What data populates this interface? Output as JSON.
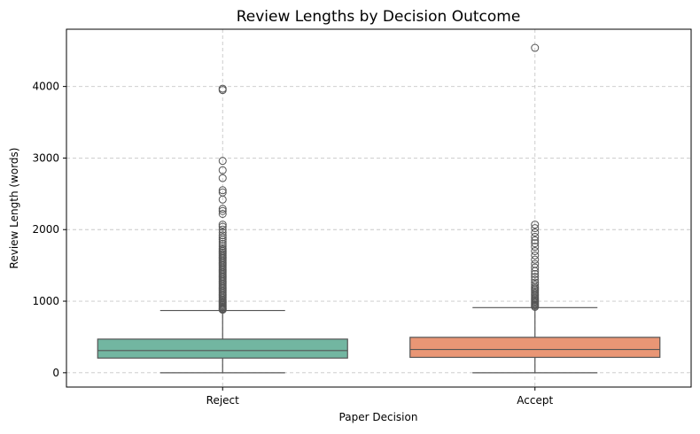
{
  "chart_data": {
    "type": "box",
    "title": "Review Lengths by Decision Outcome",
    "xlabel": "Paper Decision",
    "ylabel": "Review Length (words)",
    "categories": [
      "Reject",
      "Accept"
    ],
    "ylim": [
      -200,
      4800
    ],
    "yticks": [
      0,
      1000,
      2000,
      3000,
      4000
    ],
    "grid": true,
    "boxes": [
      {
        "category": "Reject",
        "color": "#72b6a1",
        "whisker_low": 0,
        "q1": 205,
        "median": 310,
        "q3": 470,
        "whisker_high": 870,
        "outliers": [
          880,
          890,
          900,
          915,
          930,
          945,
          960,
          975,
          990,
          1005,
          1020,
          1040,
          1060,
          1080,
          1100,
          1120,
          1140,
          1160,
          1180,
          1200,
          1220,
          1240,
          1260,
          1280,
          1300,
          1320,
          1340,
          1360,
          1380,
          1400,
          1420,
          1440,
          1460,
          1480,
          1500,
          1520,
          1540,
          1560,
          1580,
          1600,
          1620,
          1640,
          1660,
          1680,
          1700,
          1720,
          1740,
          1770,
          1800,
          1830,
          1860,
          1890,
          1920,
          1960,
          2000,
          2040,
          2070,
          2220,
          2260,
          2290,
          2420,
          2520,
          2550,
          2720,
          2830,
          2960,
          3950,
          3970
        ]
      },
      {
        "category": "Accept",
        "color": "#e99675",
        "whisker_low": 0,
        "q1": 215,
        "median": 325,
        "q3": 495,
        "whisker_high": 910,
        "outliers": [
          920,
          935,
          950,
          965,
          980,
          995,
          1010,
          1025,
          1040,
          1060,
          1080,
          1100,
          1120,
          1140,
          1160,
          1180,
          1200,
          1230,
          1260,
          1300,
          1340,
          1380,
          1420,
          1470,
          1520,
          1580,
          1640,
          1700,
          1760,
          1810,
          1850,
          1900,
          1960,
          2020,
          2070,
          4540
        ]
      }
    ]
  }
}
